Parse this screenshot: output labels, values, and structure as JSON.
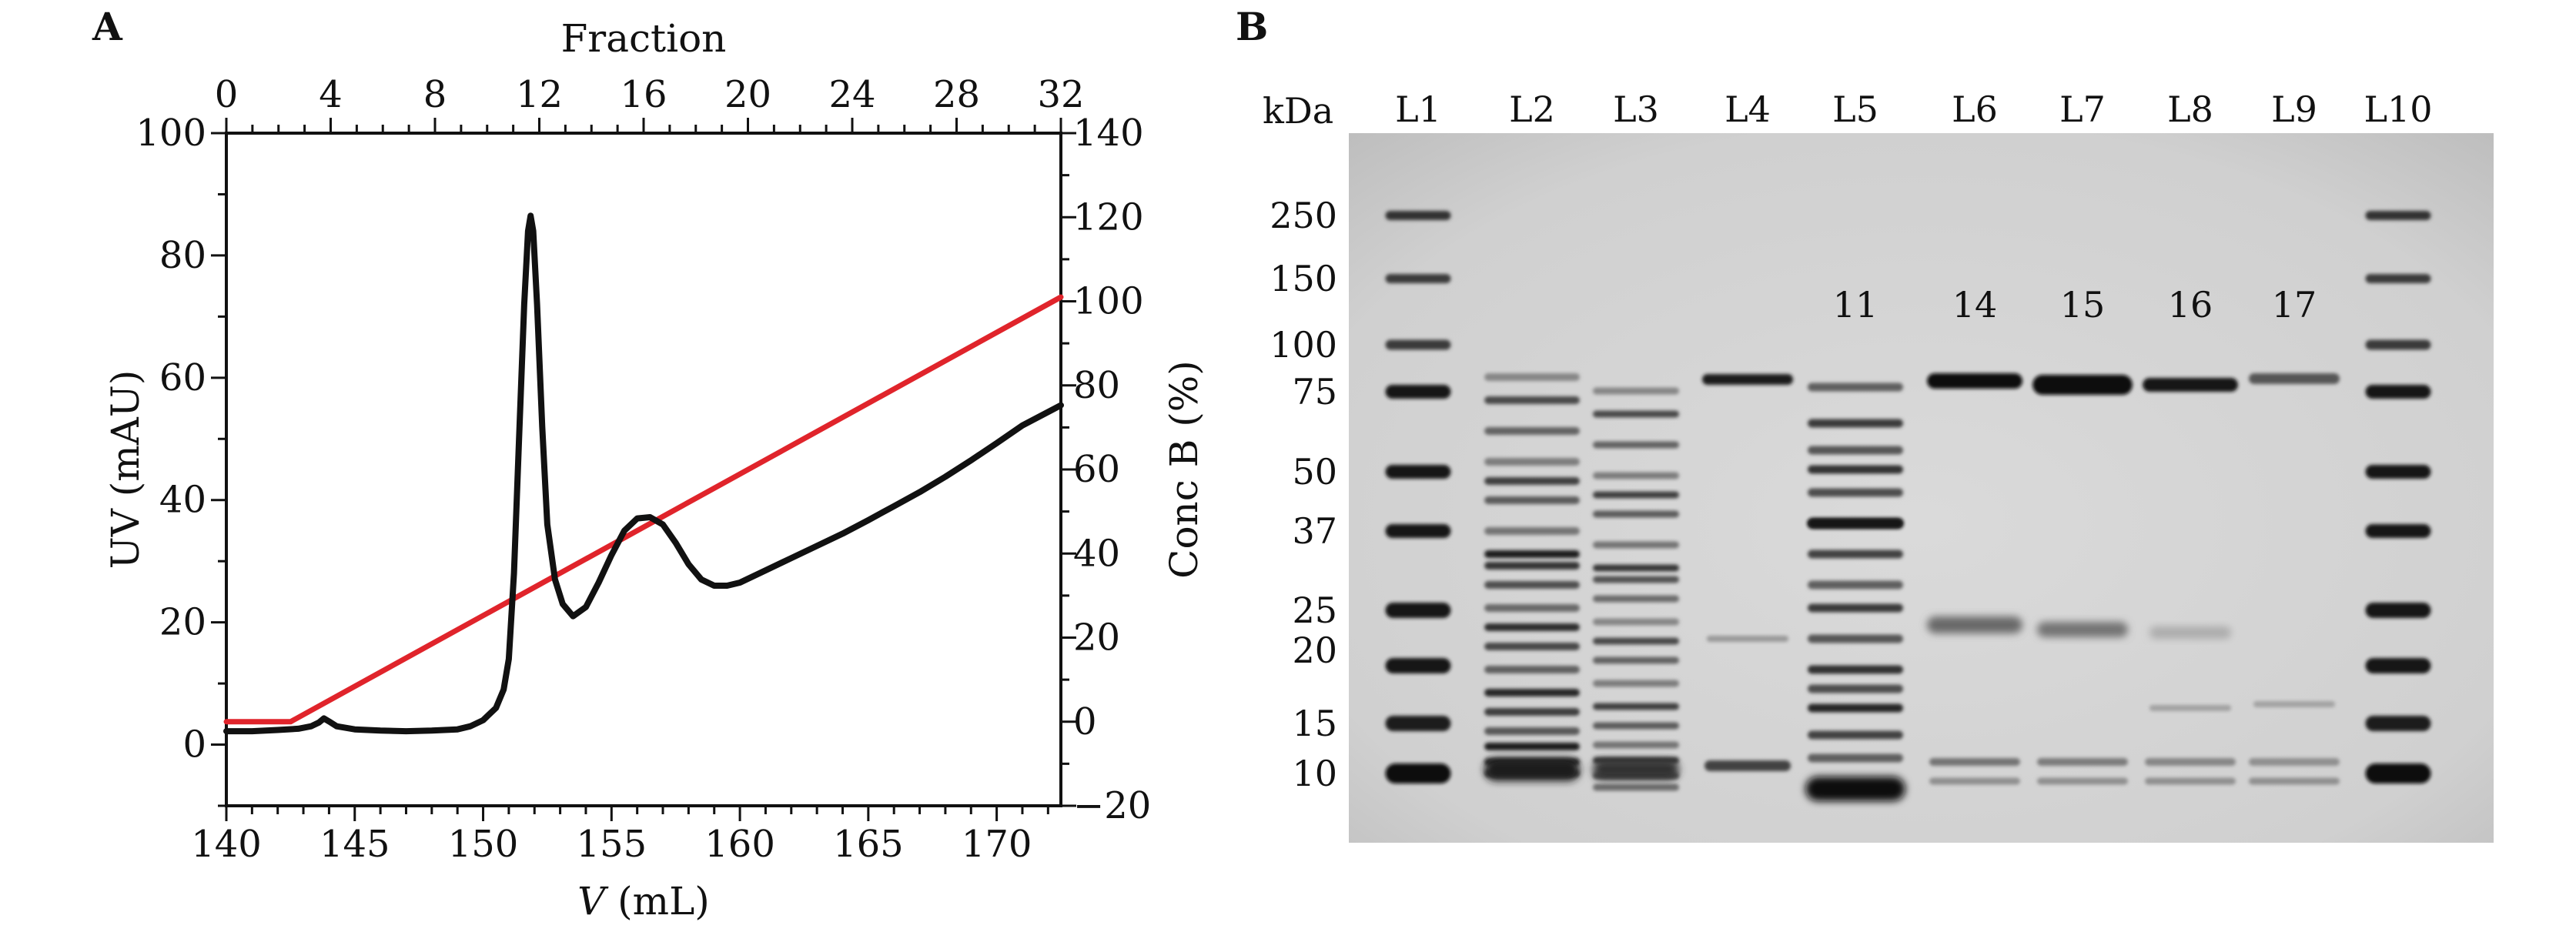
{
  "panels": {
    "a": {
      "letter": "A"
    },
    "b": {
      "letter": "B"
    }
  },
  "chart_data": [
    {
      "type": "line",
      "panel": "A",
      "xlabel_italic": "V",
      "xlabel_unit": " (mL)",
      "ylabel": "UV (mAU)",
      "y2label": "Conc B (%)",
      "x2label": "Fraction",
      "xlim": [
        140,
        172.5
      ],
      "ylim": [
        -10,
        100
      ],
      "y2lim": [
        -20,
        140
      ],
      "x2lim": [
        0,
        32
      ],
      "xticks": [
        140,
        145,
        150,
        155,
        160,
        165,
        170
      ],
      "yticks": [
        0,
        20,
        40,
        60,
        80,
        100
      ],
      "y2ticks": [
        -20,
        0,
        20,
        40,
        60,
        80,
        100,
        120,
        140
      ],
      "x2ticks": [
        0,
        4,
        8,
        12,
        16,
        20,
        24,
        28,
        32
      ],
      "series": [
        {
          "color": "#111111",
          "axis": "left",
          "points": [
            [
              140,
              2.2
            ],
            [
              141,
              2.2
            ],
            [
              142,
              2.4
            ],
            [
              142.8,
              2.6
            ],
            [
              143.3,
              3.0
            ],
            [
              143.6,
              3.6
            ],
            [
              143.8,
              4.3
            ],
            [
              144.0,
              3.8
            ],
            [
              144.3,
              3.0
            ],
            [
              145,
              2.5
            ],
            [
              146,
              2.3
            ],
            [
              147,
              2.2
            ],
            [
              148,
              2.3
            ],
            [
              149,
              2.5
            ],
            [
              149.5,
              3.0
            ],
            [
              150,
              4.0
            ],
            [
              150.5,
              6.0
            ],
            [
              150.8,
              9.0
            ],
            [
              151.0,
              14.0
            ],
            [
              151.2,
              28.0
            ],
            [
              151.4,
              50.0
            ],
            [
              151.6,
              72.0
            ],
            [
              151.75,
              84.0
            ],
            [
              151.85,
              86.5
            ],
            [
              151.95,
              84.0
            ],
            [
              152.1,
              72.0
            ],
            [
              152.3,
              52.0
            ],
            [
              152.5,
              36.0
            ],
            [
              152.8,
              27.0
            ],
            [
              153.1,
              23.0
            ],
            [
              153.5,
              21.0
            ],
            [
              154.0,
              22.5
            ],
            [
              154.5,
              26.5
            ],
            [
              155.0,
              31.0
            ],
            [
              155.5,
              35.0
            ],
            [
              156.0,
              37.0
            ],
            [
              156.5,
              37.2
            ],
            [
              157.0,
              36.0
            ],
            [
              157.5,
              33.0
            ],
            [
              158.0,
              29.5
            ],
            [
              158.5,
              27.0
            ],
            [
              159.0,
              26.0
            ],
            [
              159.5,
              26.0
            ],
            [
              160,
              26.5
            ],
            [
              161,
              28.5
            ],
            [
              162,
              30.5
            ],
            [
              163,
              32.5
            ],
            [
              164,
              34.5
            ],
            [
              165,
              36.7
            ],
            [
              166,
              39.0
            ],
            [
              167,
              41.3
            ],
            [
              168,
              43.8
            ],
            [
              169,
              46.5
            ],
            [
              170,
              49.3
            ],
            [
              171,
              52.2
            ],
            [
              172.5,
              55.5
            ]
          ]
        },
        {
          "color": "#e0242b",
          "axis": "right",
          "points": [
            [
              140,
              0
            ],
            [
              142.5,
              0
            ],
            [
              172.5,
              101
            ]
          ]
        }
      ]
    },
    {
      "type": "gel",
      "panel": "B",
      "unit_label": "kDa",
      "lanes": [
        "L1",
        "L2",
        "L3",
        "L4",
        "L5",
        "L6",
        "L7",
        "L8",
        "L9",
        "L10"
      ],
      "markers_kda": [
        "250",
        "150",
        "100",
        "75",
        "50",
        "37",
        "25",
        "20",
        "15",
        "10"
      ],
      "fraction_labels": [
        {
          "lane": "L5",
          "text": "11"
        },
        {
          "lane": "L6",
          "text": "14"
        },
        {
          "lane": "L7",
          "text": "15"
        },
        {
          "lane": "L8",
          "text": "16"
        },
        {
          "lane": "L9",
          "text": "17"
        }
      ]
    }
  ]
}
